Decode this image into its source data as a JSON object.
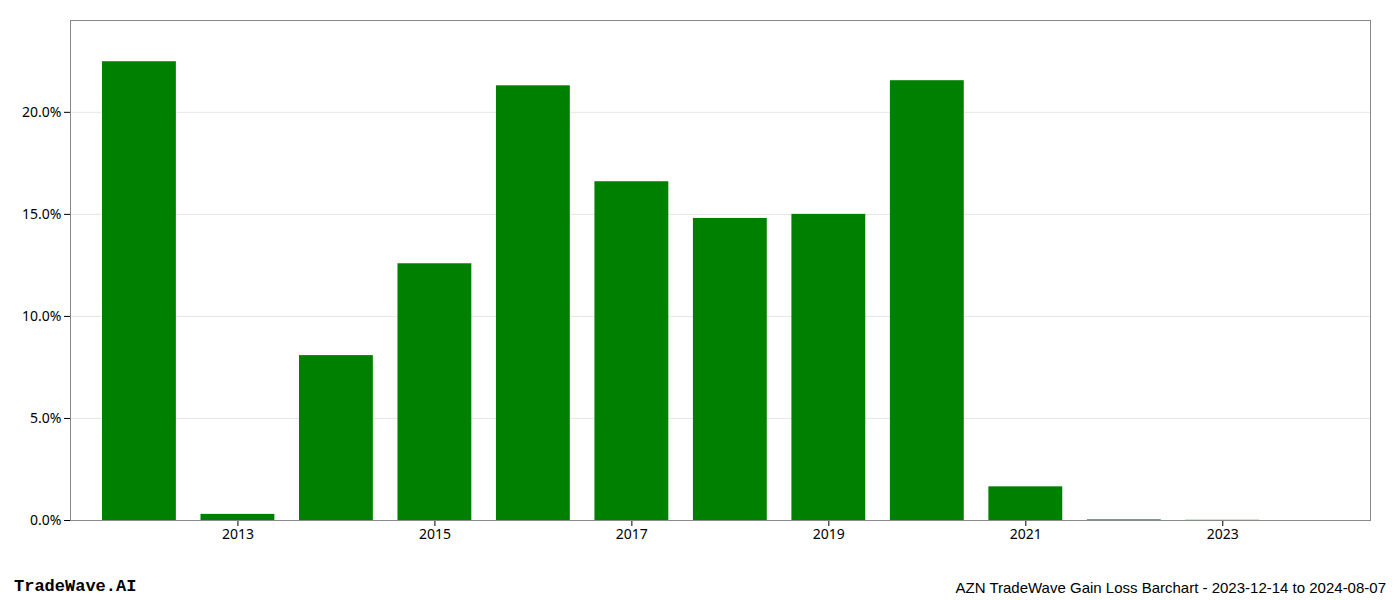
{
  "chart_data": {
    "type": "bar",
    "title": "AZN TradeWave Gain Loss Barchart - 2023-12-14 to 2024-08-07",
    "annotations": [
      "TradeWave.AI"
    ],
    "x": [
      2012,
      2013,
      2014,
      2015,
      2016,
      2017,
      2018,
      2019,
      2020,
      2021,
      2022,
      2023
    ],
    "values": [
      0.2248,
      0.003,
      0.0808,
      0.1258,
      0.213,
      0.166,
      0.148,
      0.15,
      0.2155,
      0.0165,
      0.0003,
      0.0001
    ],
    "color": "#008000",
    "xlim": [
      2011.3,
      2024.5
    ],
    "xticks": [
      2013,
      2015,
      2017,
      2019,
      2021,
      2023
    ],
    "ylim": [
      0,
      0.245
    ],
    "yticks": [
      {
        "value": 0.0,
        "label": "0.0%"
      },
      {
        "value": 0.05,
        "label": "5.0%"
      },
      {
        "value": 0.1,
        "label": "10.0%"
      },
      {
        "value": 0.15,
        "label": "15.0%"
      },
      {
        "value": 0.2,
        "label": "20.0%"
      }
    ],
    "grid": "y"
  }
}
